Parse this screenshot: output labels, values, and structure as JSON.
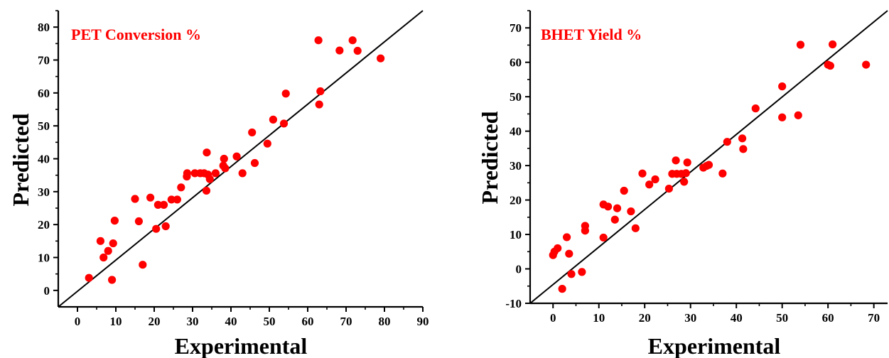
{
  "colors": {
    "marker": "#ff0000",
    "axis": "#000000",
    "title": "#ff0000",
    "fit_line": "#000000"
  },
  "chart_data": [
    {
      "type": "scatter",
      "title": "PET Conversion %",
      "xlabel": "Experimental",
      "ylabel": "Predicted",
      "xlim": [
        -5,
        90
      ],
      "ylim": [
        -5,
        85
      ],
      "xticks": [
        "0",
        "10",
        "20",
        "30",
        "40",
        "50",
        "60",
        "70",
        "80",
        "90"
      ],
      "yticks": [
        "0",
        "10",
        "20",
        "30",
        "40",
        "50",
        "60",
        "70",
        "80"
      ],
      "fit_line": [
        [
          -5,
          -5
        ],
        [
          90,
          85
        ]
      ],
      "grid": false,
      "points": [
        [
          3,
          3.8
        ],
        [
          6,
          15
        ],
        [
          6.8,
          10
        ],
        [
          8,
          12
        ],
        [
          9,
          3.2
        ],
        [
          9.3,
          14.3
        ],
        [
          9.7,
          21.2
        ],
        [
          15,
          27.8
        ],
        [
          16,
          21
        ],
        [
          17,
          7.8
        ],
        [
          19,
          28.2
        ],
        [
          20.5,
          18.7
        ],
        [
          21,
          26
        ],
        [
          22.5,
          26
        ],
        [
          23,
          19.5
        ],
        [
          24.5,
          27.6
        ],
        [
          26,
          27.6
        ],
        [
          27,
          31.3
        ],
        [
          28.5,
          34.6
        ],
        [
          28.6,
          35.6
        ],
        [
          30.6,
          35.6
        ],
        [
          32,
          35.6
        ],
        [
          33,
          35.6
        ],
        [
          33.6,
          30.3
        ],
        [
          33.7,
          41.9
        ],
        [
          34,
          35.2
        ],
        [
          34.5,
          33.8
        ],
        [
          36,
          35.6
        ],
        [
          38,
          37.9
        ],
        [
          38.2,
          40
        ],
        [
          38.5,
          37.1
        ],
        [
          41.5,
          40.7
        ],
        [
          43,
          35.6
        ],
        [
          45.5,
          48
        ],
        [
          46.2,
          38.7
        ],
        [
          49.5,
          44.6
        ],
        [
          51,
          51.9
        ],
        [
          53.8,
          50.7
        ],
        [
          54.3,
          59.8
        ],
        [
          62.8,
          76
        ],
        [
          63,
          56.5
        ],
        [
          63.3,
          60.5
        ],
        [
          68.3,
          72.9
        ],
        [
          71.7,
          76
        ],
        [
          73,
          72.8
        ],
        [
          79,
          70.5
        ]
      ]
    },
    {
      "type": "scatter",
      "title": "BHET Yield %",
      "xlabel": "Experimental",
      "ylabel": "Predicted",
      "xlim": [
        -5,
        73
      ],
      "ylim": [
        -10,
        75
      ],
      "xticks": [
        "0",
        "10",
        "20",
        "30",
        "40",
        "50",
        "60",
        "70"
      ],
      "yticks": [
        "-10",
        "0",
        "10",
        "20",
        "30",
        "40",
        "50",
        "60",
        "70"
      ],
      "fit_line": [
        [
          -5,
          -10
        ],
        [
          73,
          75
        ]
      ],
      "grid": false,
      "points": [
        [
          0,
          4
        ],
        [
          0.3,
          5
        ],
        [
          1,
          6
        ],
        [
          2,
          -5.8
        ],
        [
          3,
          9.2
        ],
        [
          3.5,
          4.4
        ],
        [
          4,
          -1.5
        ],
        [
          6.3,
          -0.9
        ],
        [
          7,
          11.1
        ],
        [
          7,
          12.5
        ],
        [
          11,
          18.7
        ],
        [
          11,
          9.1
        ],
        [
          12,
          18.1
        ],
        [
          13.5,
          14.3
        ],
        [
          14,
          17.6
        ],
        [
          15.5,
          22.7
        ],
        [
          17,
          16.7
        ],
        [
          18,
          11.8
        ],
        [
          19.5,
          27.7
        ],
        [
          21,
          24.5
        ],
        [
          22.3,
          26
        ],
        [
          25.3,
          23.3
        ],
        [
          26,
          27.6
        ],
        [
          26.8,
          31.5
        ],
        [
          27,
          27.6
        ],
        [
          28,
          27.6
        ],
        [
          28.6,
          25.3
        ],
        [
          29,
          27.8
        ],
        [
          29.3,
          30.9
        ],
        [
          32.8,
          29.4
        ],
        [
          33.5,
          29.9
        ],
        [
          34,
          30.2
        ],
        [
          37,
          27.7
        ],
        [
          38,
          36.9
        ],
        [
          41.3,
          37.9
        ],
        [
          41.5,
          34.8
        ],
        [
          44.2,
          46.6
        ],
        [
          50,
          53
        ],
        [
          50,
          44
        ],
        [
          53.5,
          44.6
        ],
        [
          54,
          65.1
        ],
        [
          60,
          59.3
        ],
        [
          60.5,
          59
        ],
        [
          61,
          65.2
        ],
        [
          68.3,
          59.3
        ]
      ]
    }
  ]
}
